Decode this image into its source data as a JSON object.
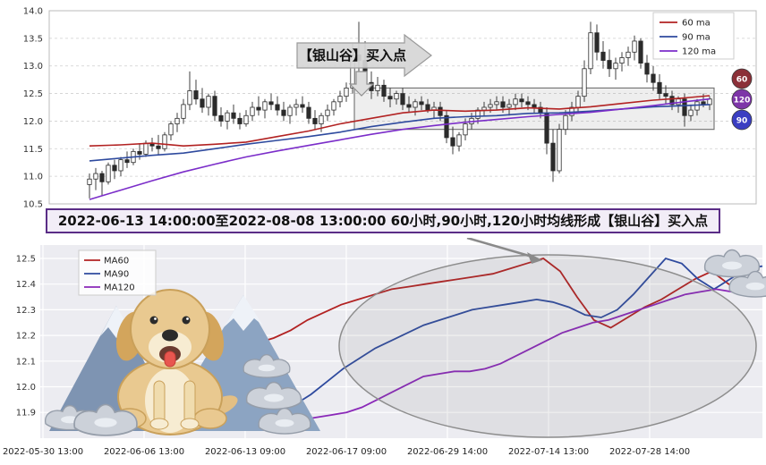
{
  "banner": {
    "text": "2022-06-13 14:00:00至2022-08-08 13:00:00 60小时,90小时,120小时均线形成【银山谷】买入点",
    "border_color": "#5a2d86"
  },
  "chart_data": [
    {
      "type": "candlestick",
      "title": "",
      "ylim": [
        10.5,
        14.0
      ],
      "yticks": [
        10.5,
        11.0,
        11.5,
        12.0,
        12.5,
        13.0,
        13.5,
        14.0
      ],
      "grid": "dashed-gray",
      "legend_position": "upper right",
      "legend": [
        {
          "label": "60 ma",
          "color": "#b22222"
        },
        {
          "label": "90 ma",
          "color": "#2e4a9e"
        },
        {
          "label": "120 ma",
          "color": "#7b2dc9"
        }
      ],
      "annotation": {
        "text": "【银山谷】买入点",
        "arrow": "down-to-breakout-candle"
      },
      "badges": [
        {
          "label": "60",
          "color": "#8b3038"
        },
        {
          "label": "120",
          "color": "#7d35a8"
        },
        {
          "label": "90",
          "color": "#3a3ec2"
        }
      ],
      "highlight_box": {
        "from_candle": 43,
        "to_candle": 99,
        "value_top": 12.6,
        "value_bottom": 11.85
      },
      "candles": [
        [
          10.85,
          11.05,
          10.6,
          10.95
        ],
        [
          10.95,
          11.15,
          10.75,
          11.05
        ],
        [
          11.05,
          11.1,
          10.65,
          10.9
        ],
        [
          10.9,
          11.25,
          10.85,
          11.2
        ],
        [
          11.2,
          11.3,
          10.95,
          11.1
        ],
        [
          11.1,
          11.35,
          11.0,
          11.3
        ],
        [
          11.3,
          11.45,
          11.15,
          11.25
        ],
        [
          11.25,
          11.5,
          11.2,
          11.45
        ],
        [
          11.45,
          11.6,
          11.3,
          11.4
        ],
        [
          11.4,
          11.65,
          11.35,
          11.6
        ],
        [
          11.6,
          11.7,
          11.45,
          11.55
        ],
        [
          11.55,
          11.75,
          11.4,
          11.5
        ],
        [
          11.5,
          11.8,
          11.45,
          11.75
        ],
        [
          11.75,
          12.0,
          11.65,
          11.95
        ],
        [
          11.95,
          12.15,
          11.8,
          12.05
        ],
        [
          12.05,
          12.4,
          11.95,
          12.3
        ],
        [
          12.3,
          12.9,
          12.2,
          12.55
        ],
        [
          12.55,
          12.75,
          12.3,
          12.4
        ],
        [
          12.4,
          12.6,
          12.15,
          12.25
        ],
        [
          12.25,
          12.5,
          12.1,
          12.45
        ],
        [
          12.45,
          12.55,
          12.0,
          12.1
        ],
        [
          12.1,
          12.25,
          11.9,
          12.0
        ],
        [
          12.0,
          12.2,
          11.85,
          12.15
        ],
        [
          12.15,
          12.3,
          11.95,
          12.05
        ],
        [
          12.05,
          12.15,
          11.85,
          11.95
        ],
        [
          11.95,
          12.2,
          11.9,
          12.1
        ],
        [
          12.1,
          12.35,
          12.0,
          12.25
        ],
        [
          12.25,
          12.45,
          12.1,
          12.2
        ],
        [
          12.2,
          12.4,
          12.05,
          12.35
        ],
        [
          12.35,
          12.5,
          12.2,
          12.3
        ],
        [
          12.3,
          12.45,
          12.1,
          12.2
        ],
        [
          12.2,
          12.35,
          12.0,
          12.1
        ],
        [
          12.1,
          12.3,
          11.95,
          12.25
        ],
        [
          12.25,
          12.4,
          12.1,
          12.3
        ],
        [
          12.3,
          12.45,
          12.15,
          12.25
        ],
        [
          12.25,
          12.35,
          11.95,
          12.05
        ],
        [
          12.05,
          12.2,
          11.85,
          11.95
        ],
        [
          11.95,
          12.15,
          11.8,
          12.1
        ],
        [
          12.1,
          12.3,
          12.0,
          12.2
        ],
        [
          12.2,
          12.4,
          12.1,
          12.35
        ],
        [
          12.35,
          12.55,
          12.25,
          12.45
        ],
        [
          12.45,
          12.7,
          12.35,
          12.6
        ],
        [
          12.6,
          13.4,
          12.5,
          13.2
        ],
        [
          13.2,
          13.8,
          12.9,
          13.1
        ],
        [
          13.1,
          13.45,
          12.55,
          12.7
        ],
        [
          12.7,
          12.9,
          12.4,
          12.55
        ],
        [
          12.55,
          12.8,
          12.45,
          12.65
        ],
        [
          12.65,
          12.75,
          12.35,
          12.45
        ],
        [
          12.45,
          12.6,
          12.25,
          12.4
        ],
        [
          12.4,
          12.55,
          12.3,
          12.5
        ],
        [
          12.5,
          12.6,
          12.2,
          12.3
        ],
        [
          12.3,
          12.45,
          12.15,
          12.25
        ],
        [
          12.25,
          12.4,
          12.1,
          12.35
        ],
        [
          12.35,
          12.45,
          12.2,
          12.3
        ],
        [
          12.3,
          12.4,
          12.15,
          12.2
        ],
        [
          12.2,
          12.35,
          12.05,
          12.25
        ],
        [
          12.25,
          12.35,
          12.0,
          12.1
        ],
        [
          12.1,
          12.2,
          11.6,
          11.7
        ],
        [
          11.7,
          11.9,
          11.4,
          11.55
        ],
        [
          11.55,
          11.8,
          11.45,
          11.75
        ],
        [
          11.75,
          12.05,
          11.65,
          11.95
        ],
        [
          11.95,
          12.15,
          11.85,
          12.05
        ],
        [
          12.05,
          12.25,
          11.95,
          12.2
        ],
        [
          12.2,
          12.35,
          12.1,
          12.25
        ],
        [
          12.25,
          12.4,
          12.15,
          12.3
        ],
        [
          12.3,
          12.45,
          12.2,
          12.35
        ],
        [
          12.35,
          12.45,
          12.15,
          12.25
        ],
        [
          12.25,
          12.4,
          12.1,
          12.3
        ],
        [
          12.3,
          12.5,
          12.2,
          12.4
        ],
        [
          12.4,
          12.5,
          12.25,
          12.35
        ],
        [
          12.35,
          12.45,
          12.2,
          12.3
        ],
        [
          12.3,
          12.4,
          12.15,
          12.25
        ],
        [
          12.25,
          12.35,
          12.05,
          12.15
        ],
        [
          12.15,
          12.25,
          11.4,
          11.6
        ],
        [
          11.6,
          11.85,
          10.9,
          11.1
        ],
        [
          11.1,
          11.95,
          11.05,
          11.85
        ],
        [
          11.85,
          12.2,
          11.75,
          12.1
        ],
        [
          12.1,
          12.35,
          12.0,
          12.25
        ],
        [
          12.25,
          12.55,
          12.15,
          12.45
        ],
        [
          12.45,
          13.1,
          12.35,
          12.95
        ],
        [
          12.95,
          13.8,
          12.85,
          13.6
        ],
        [
          13.6,
          13.75,
          13.1,
          13.25
        ],
        [
          13.25,
          13.45,
          12.95,
          13.1
        ],
        [
          13.1,
          13.3,
          12.8,
          12.95
        ],
        [
          12.95,
          13.15,
          12.75,
          13.05
        ],
        [
          13.05,
          13.25,
          12.9,
          13.15
        ],
        [
          13.15,
          13.35,
          13.0,
          13.25
        ],
        [
          13.25,
          13.55,
          13.1,
          13.45
        ],
        [
          13.45,
          13.5,
          12.95,
          13.05
        ],
        [
          13.05,
          13.2,
          12.7,
          12.85
        ],
        [
          12.85,
          13.0,
          12.55,
          12.7
        ],
        [
          12.7,
          12.85,
          12.4,
          12.5
        ],
        [
          12.5,
          12.65,
          12.3,
          12.45
        ],
        [
          12.45,
          12.55,
          12.2,
          12.3
        ],
        [
          12.3,
          12.45,
          12.15,
          12.4
        ],
        [
          12.4,
          12.5,
          11.9,
          12.1
        ],
        [
          12.1,
          12.3,
          12.0,
          12.2
        ],
        [
          12.2,
          12.4,
          12.1,
          12.35
        ],
        [
          12.35,
          12.5,
          12.25,
          12.3
        ],
        [
          12.3,
          12.45,
          12.2,
          12.4
        ]
      ],
      "ma_idx": [
        0,
        5,
        10,
        15,
        20,
        25,
        30,
        35,
        40,
        45,
        50,
        55,
        60,
        65,
        70,
        75,
        80,
        85,
        90,
        95,
        99
      ],
      "ma60": [
        11.55,
        11.57,
        11.6,
        11.55,
        11.58,
        11.62,
        11.72,
        11.82,
        11.95,
        12.05,
        12.15,
        12.2,
        12.18,
        12.2,
        12.24,
        12.22,
        12.26,
        12.32,
        12.38,
        12.42,
        12.46
      ],
      "ma90": [
        11.28,
        11.33,
        11.38,
        11.42,
        11.5,
        11.58,
        11.65,
        11.72,
        11.8,
        11.9,
        11.98,
        12.05,
        12.08,
        12.1,
        12.14,
        12.15,
        12.18,
        12.22,
        12.26,
        12.28,
        12.3
      ],
      "ma120": [
        10.58,
        10.75,
        10.92,
        11.08,
        11.22,
        11.35,
        11.46,
        11.56,
        11.66,
        11.76,
        11.85,
        11.92,
        11.98,
        12.03,
        12.08,
        12.12,
        12.16,
        12.22,
        12.28,
        12.35,
        12.4
      ]
    },
    {
      "type": "line",
      "ylim": [
        11.85,
        12.55
      ],
      "yticks": [
        11.9,
        12.0,
        12.1,
        12.2,
        12.3,
        12.4,
        12.5
      ],
      "xticks": [
        "2022-05-30 13:00",
        "2022-06-06 13:00",
        "2022-06-13 09:00",
        "2022-06-17 09:00",
        "2022-06-29 14:00",
        "2022-07-14 13:00",
        "2022-07-28 14:00"
      ],
      "grid": "white-on-gray",
      "legend_position": "upper left",
      "series": [
        {
          "name": "MA60",
          "color": "#b22222",
          "start_frac": 0.3,
          "values": [
            12.17,
            12.19,
            12.22,
            12.26,
            12.29,
            12.32,
            12.34,
            12.36,
            12.38,
            12.39,
            12.4,
            12.41,
            12.42,
            12.43,
            12.44,
            12.46,
            12.48,
            12.5,
            12.45,
            12.35,
            12.26,
            12.23,
            12.27,
            12.31,
            12.34,
            12.38,
            12.42,
            12.45,
            12.4,
            12.37,
            12.42
          ]
        },
        {
          "name": "MA90",
          "color": "#2e4a9e",
          "start_frac": 0.33,
          "values": [
            11.9,
            11.93,
            11.97,
            12.02,
            12.07,
            12.11,
            12.15,
            12.18,
            12.21,
            12.24,
            12.26,
            12.28,
            12.3,
            12.31,
            12.32,
            12.33,
            12.34,
            12.33,
            12.31,
            12.28,
            12.27,
            12.3,
            12.36,
            12.43,
            12.5,
            12.48,
            12.42,
            12.38,
            12.42,
            12.46,
            12.47
          ]
        },
        {
          "name": "MA120",
          "color": "#8a28b8",
          "start_frac": 0.36,
          "values": [
            11.87,
            11.88,
            11.89,
            11.9,
            11.92,
            11.95,
            11.98,
            12.01,
            12.04,
            12.05,
            12.06,
            12.06,
            12.07,
            12.09,
            12.12,
            12.15,
            12.18,
            12.21,
            12.23,
            12.25,
            12.26,
            12.28,
            12.3,
            12.32,
            12.34,
            12.36,
            12.37,
            12.38,
            12.37,
            12.36,
            12.38
          ]
        }
      ],
      "decorations": [
        "highlight-ellipse",
        "trend-arrow",
        "golden-retriever-dog",
        "snow-mountains",
        "silver-ingots"
      ]
    }
  ]
}
